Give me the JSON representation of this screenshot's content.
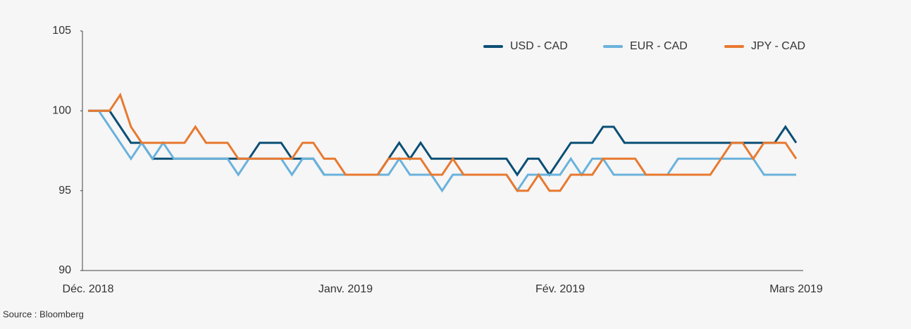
{
  "chart_data": {
    "type": "line",
    "categories": [
      "Déc. 2018",
      null,
      null,
      null,
      null,
      null,
      null,
      null,
      null,
      null,
      null,
      null,
      null,
      null,
      null,
      null,
      null,
      null,
      null,
      null,
      null,
      null,
      null,
      null,
      "Janv. 2019",
      null,
      null,
      null,
      null,
      null,
      null,
      null,
      null,
      null,
      null,
      null,
      null,
      null,
      null,
      null,
      null,
      null,
      null,
      null,
      "Fév. 2019",
      null,
      null,
      null,
      null,
      null,
      null,
      null,
      null,
      null,
      null,
      null,
      null,
      null,
      null,
      null,
      null,
      null,
      null,
      null,
      null,
      null,
      "Mars 2019"
    ],
    "series": [
      {
        "name": "USD - CAD",
        "color": "#0b4f75",
        "values": [
          100,
          100,
          100,
          99,
          98,
          98,
          97,
          97,
          97,
          97,
          97,
          97,
          97,
          97,
          97,
          97,
          98,
          98,
          98,
          97,
          97,
          97,
          96,
          96,
          96,
          96,
          96,
          96,
          97,
          98,
          97,
          98,
          97,
          97,
          97,
          97,
          97,
          97,
          97,
          97,
          96,
          97,
          97,
          96,
          97,
          98,
          98,
          98,
          99,
          99,
          98,
          98,
          98,
          98,
          98,
          98,
          98,
          98,
          98,
          98,
          98,
          98,
          98,
          98,
          98,
          99,
          98
        ]
      },
      {
        "name": "EUR - CAD",
        "color": "#6ab2dc",
        "values": [
          100,
          100,
          99,
          98,
          97,
          98,
          97,
          98,
          97,
          97,
          97,
          97,
          97,
          97,
          96,
          97,
          97,
          97,
          97,
          96,
          97,
          97,
          96,
          96,
          96,
          96,
          96,
          96,
          96,
          97,
          96,
          96,
          96,
          95,
          96,
          96,
          96,
          96,
          96,
          96,
          95,
          96,
          96,
          96,
          96,
          97,
          96,
          97,
          97,
          96,
          96,
          96,
          96,
          96,
          96,
          97,
          97,
          97,
          97,
          97,
          97,
          97,
          97,
          96,
          96,
          96,
          96
        ]
      },
      {
        "name": "JPY - CAD",
        "color": "#e8792f",
        "values": [
          100,
          100,
          100,
          101,
          99,
          98,
          98,
          98,
          98,
          98,
          99,
          98,
          98,
          98,
          97,
          97,
          97,
          97,
          97,
          97,
          98,
          98,
          97,
          97,
          96,
          96,
          96,
          96,
          97,
          97,
          97,
          97,
          96,
          96,
          97,
          96,
          96,
          96,
          96,
          96,
          95,
          95,
          96,
          95,
          95,
          96,
          96,
          96,
          97,
          97,
          97,
          97,
          96,
          96,
          96,
          96,
          96,
          96,
          96,
          97,
          98,
          98,
          97,
          98,
          98,
          98,
          97
        ]
      }
    ],
    "ylim": [
      90,
      105
    ],
    "yticks": [
      90,
      95,
      100,
      105
    ],
    "legend": "top-right",
    "source": "Source : Bloomberg"
  }
}
